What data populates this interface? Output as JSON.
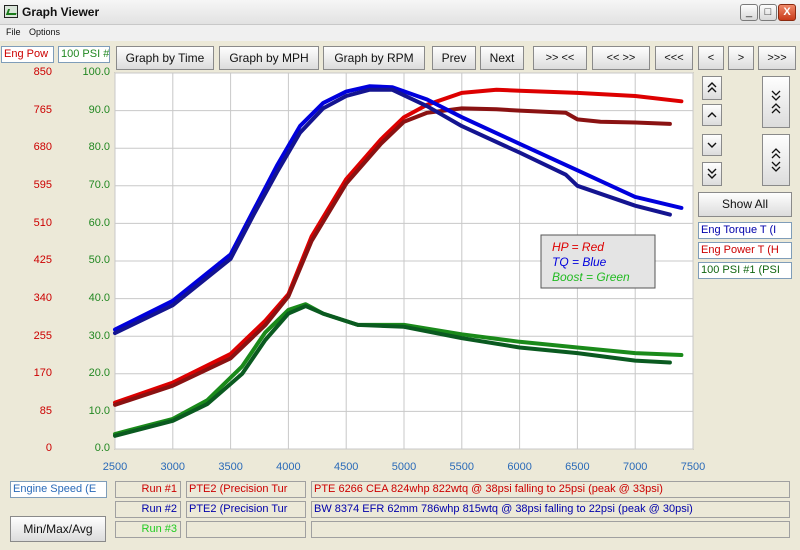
{
  "window": {
    "title": "Graph Viewer",
    "minimize": "_",
    "maximize": "□",
    "close": "X"
  },
  "menu": [
    "File",
    "Options"
  ],
  "header_channels": {
    "left": "Eng Pow",
    "right": "100 PSI #"
  },
  "toolbar": {
    "graph_by_time": "Graph by Time",
    "graph_by_mph": "Graph by MPH",
    "graph_by_rpm": "Graph by RPM",
    "prev": "Prev",
    "next": "Next",
    "zoom_in": ">> <<",
    "zoom_out": "<< >>",
    "scroll_far_left": "<<<",
    "scroll_left": "<",
    "scroll_right": ">",
    "scroll_far_right": ">>>"
  },
  "right_panel": {
    "show_all": "Show All",
    "channels": [
      "Eng Torque T (I",
      "Eng Power T (H",
      "100 PSI #1 (PSI"
    ]
  },
  "bottom": {
    "channel_select": "Engine Speed (E",
    "min_max_avg": "Min/Max/Avg",
    "runs": [
      {
        "label": "Run #1",
        "name": "PTE2 (Precision Tur",
        "description": "PTE 6266 CEA 824whp 822wtq @ 38psi falling to 25psi (peak @ 33psi)"
      },
      {
        "label": "Run #2",
        "name": "PTE2 (Precision Tur",
        "description": "BW 8374 EFR 62mm 786whp 815wtq @ 38psi falling to 22psi (peak @ 30psi)"
      },
      {
        "label": "Run #3",
        "name": "",
        "description": ""
      }
    ]
  },
  "colors": {
    "hp": "#dd0000",
    "hp_dark": "#8a1212",
    "tq": "#0000dd",
    "tq_dark": "#141490",
    "boost": "#1a8a1a",
    "boost_dark": "#0a5a20",
    "left_axis": "#cc0000",
    "right_axis": "#228822",
    "x_axis": "#2a6ab8",
    "run3": "#22cc22"
  },
  "chart_data": {
    "type": "line",
    "xlabel": "",
    "xlim": [
      2500,
      7500
    ],
    "x_ticks": [
      "2500",
      "3000",
      "3500",
      "4000",
      "4500",
      "5000",
      "5500",
      "6000",
      "6500",
      "7000",
      "7500"
    ],
    "left_axis": {
      "ylim": [
        0,
        850
      ],
      "ticks": [
        "0",
        "85",
        "170",
        "255",
        "340",
        "425",
        "510",
        "595",
        "680",
        "765",
        "850"
      ]
    },
    "right_axis": {
      "ylim": [
        0,
        100
      ],
      "ticks": [
        "0.0",
        "10.0",
        "20.0",
        "30.0",
        "40.0",
        "50.0",
        "60.0",
        "70.0",
        "80.0",
        "90.0",
        "100.0"
      ]
    },
    "legend": {
      "position": "center-right",
      "entries": [
        "HP = Red",
        "TQ = Blue",
        "Boost = Green"
      ]
    },
    "grid": true,
    "series": [
      {
        "name": "HP Run #1",
        "axis": "left",
        "color": "hp",
        "x": [
          2500,
          3000,
          3500,
          3800,
          4000,
          4200,
          4500,
          4800,
          5000,
          5200,
          5500,
          5800,
          6000,
          6500,
          7000,
          7400
        ],
        "y": [
          105,
          150,
          215,
          290,
          350,
          480,
          610,
          700,
          750,
          778,
          805,
          812,
          810,
          805,
          798,
          786
        ]
      },
      {
        "name": "HP Run #2",
        "axis": "left",
        "color": "hp_dark",
        "x": [
          2500,
          3000,
          3500,
          3800,
          4000,
          4200,
          4500,
          4800,
          5000,
          5200,
          5500,
          5800,
          6000,
          6400,
          6500,
          6700,
          7000,
          7300
        ],
        "y": [
          100,
          143,
          205,
          280,
          345,
          470,
          600,
          690,
          740,
          760,
          770,
          768,
          765,
          760,
          745,
          740,
          738,
          735
        ]
      },
      {
        "name": "TQ Run #1",
        "axis": "left",
        "color": "tq",
        "x": [
          2500,
          3000,
          3500,
          3700,
          3900,
          4100,
          4300,
          4500,
          4700,
          4900,
          5200,
          5500,
          6000,
          6500,
          7000,
          7400
        ],
        "y": [
          270,
          335,
          440,
          540,
          640,
          730,
          782,
          808,
          820,
          818,
          790,
          750,
          690,
          630,
          570,
          545
        ]
      },
      {
        "name": "TQ Run #2",
        "axis": "left",
        "color": "tq_dark",
        "x": [
          2500,
          3000,
          3500,
          3700,
          3900,
          4100,
          4300,
          4500,
          4700,
          4900,
          5200,
          5500,
          6000,
          6400,
          6500,
          7000,
          7300
        ],
        "y": [
          262,
          325,
          430,
          530,
          625,
          715,
          770,
          798,
          812,
          812,
          775,
          730,
          670,
          620,
          595,
          550,
          530
        ]
      },
      {
        "name": "Boost Run #1",
        "axis": "right",
        "color": "boost",
        "x": [
          2500,
          3000,
          3300,
          3600,
          3800,
          4000,
          4150,
          4300,
          4600,
          5000,
          5500,
          6000,
          6500,
          7000,
          7400
        ],
        "y": [
          4,
          8,
          13,
          22,
          31,
          37,
          38.5,
          36,
          33,
          33,
          30.5,
          28.5,
          27,
          25.5,
          25
        ]
      },
      {
        "name": "Boost Run #2",
        "axis": "right",
        "color": "boost_dark",
        "x": [
          2500,
          3000,
          3300,
          3600,
          3800,
          4000,
          4150,
          4300,
          4600,
          5000,
          5500,
          6000,
          6500,
          7000,
          7300
        ],
        "y": [
          3.5,
          7.5,
          12,
          20,
          29,
          36,
          38,
          36,
          33,
          32.5,
          29.5,
          27,
          25.5,
          23.5,
          23
        ]
      }
    ]
  }
}
